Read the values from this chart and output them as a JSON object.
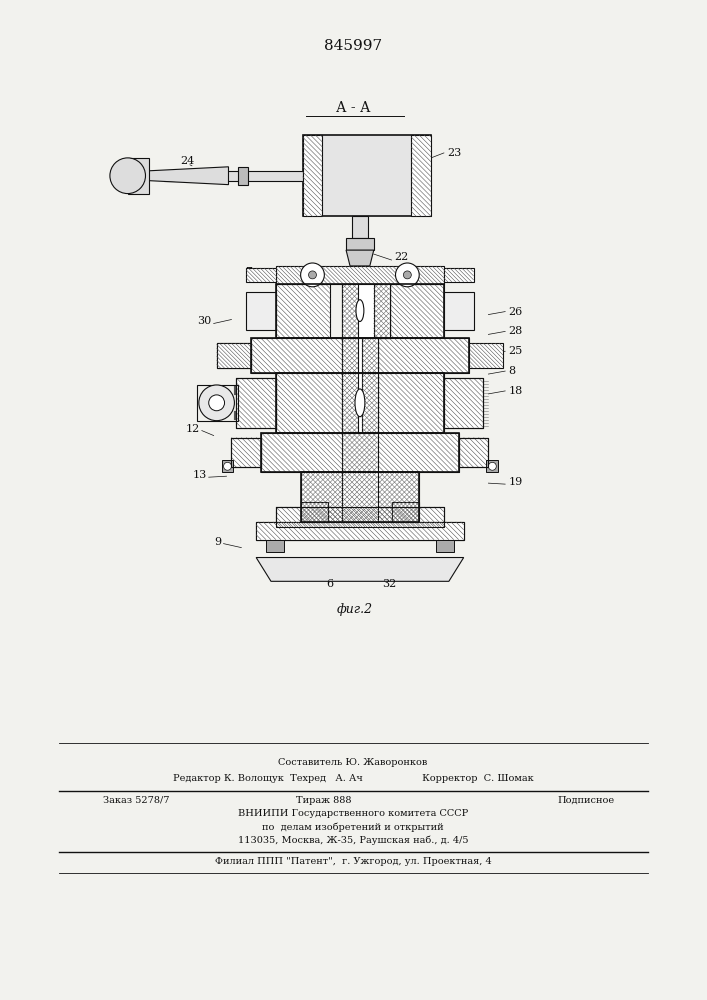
{
  "patent_number": "845997",
  "section_label": "А - А",
  "fig_label": "фиг.2",
  "background_color": "#f2f2ee",
  "line_color": "#111111",
  "footer_lines": [
    "Составитель Ю. Жаворонков",
    "Редактор К. Волощук  Техред   А. Ач                   Корректор  С. Шомак",
    "Заказ 5278/7",
    "Тираж 888",
    "Подписное",
    "ВНИИПИ Государственного комитета СССР",
    "по  делам изобретений и открытий",
    "113035, Москва, Ж-35, Раушская наб., д. 4/5",
    "Филиал ППП \"Патент\",  г. Ужгород, ул. Проектная, 4"
  ],
  "figsize": [
    7.07,
    10.0
  ],
  "dpi": 100
}
